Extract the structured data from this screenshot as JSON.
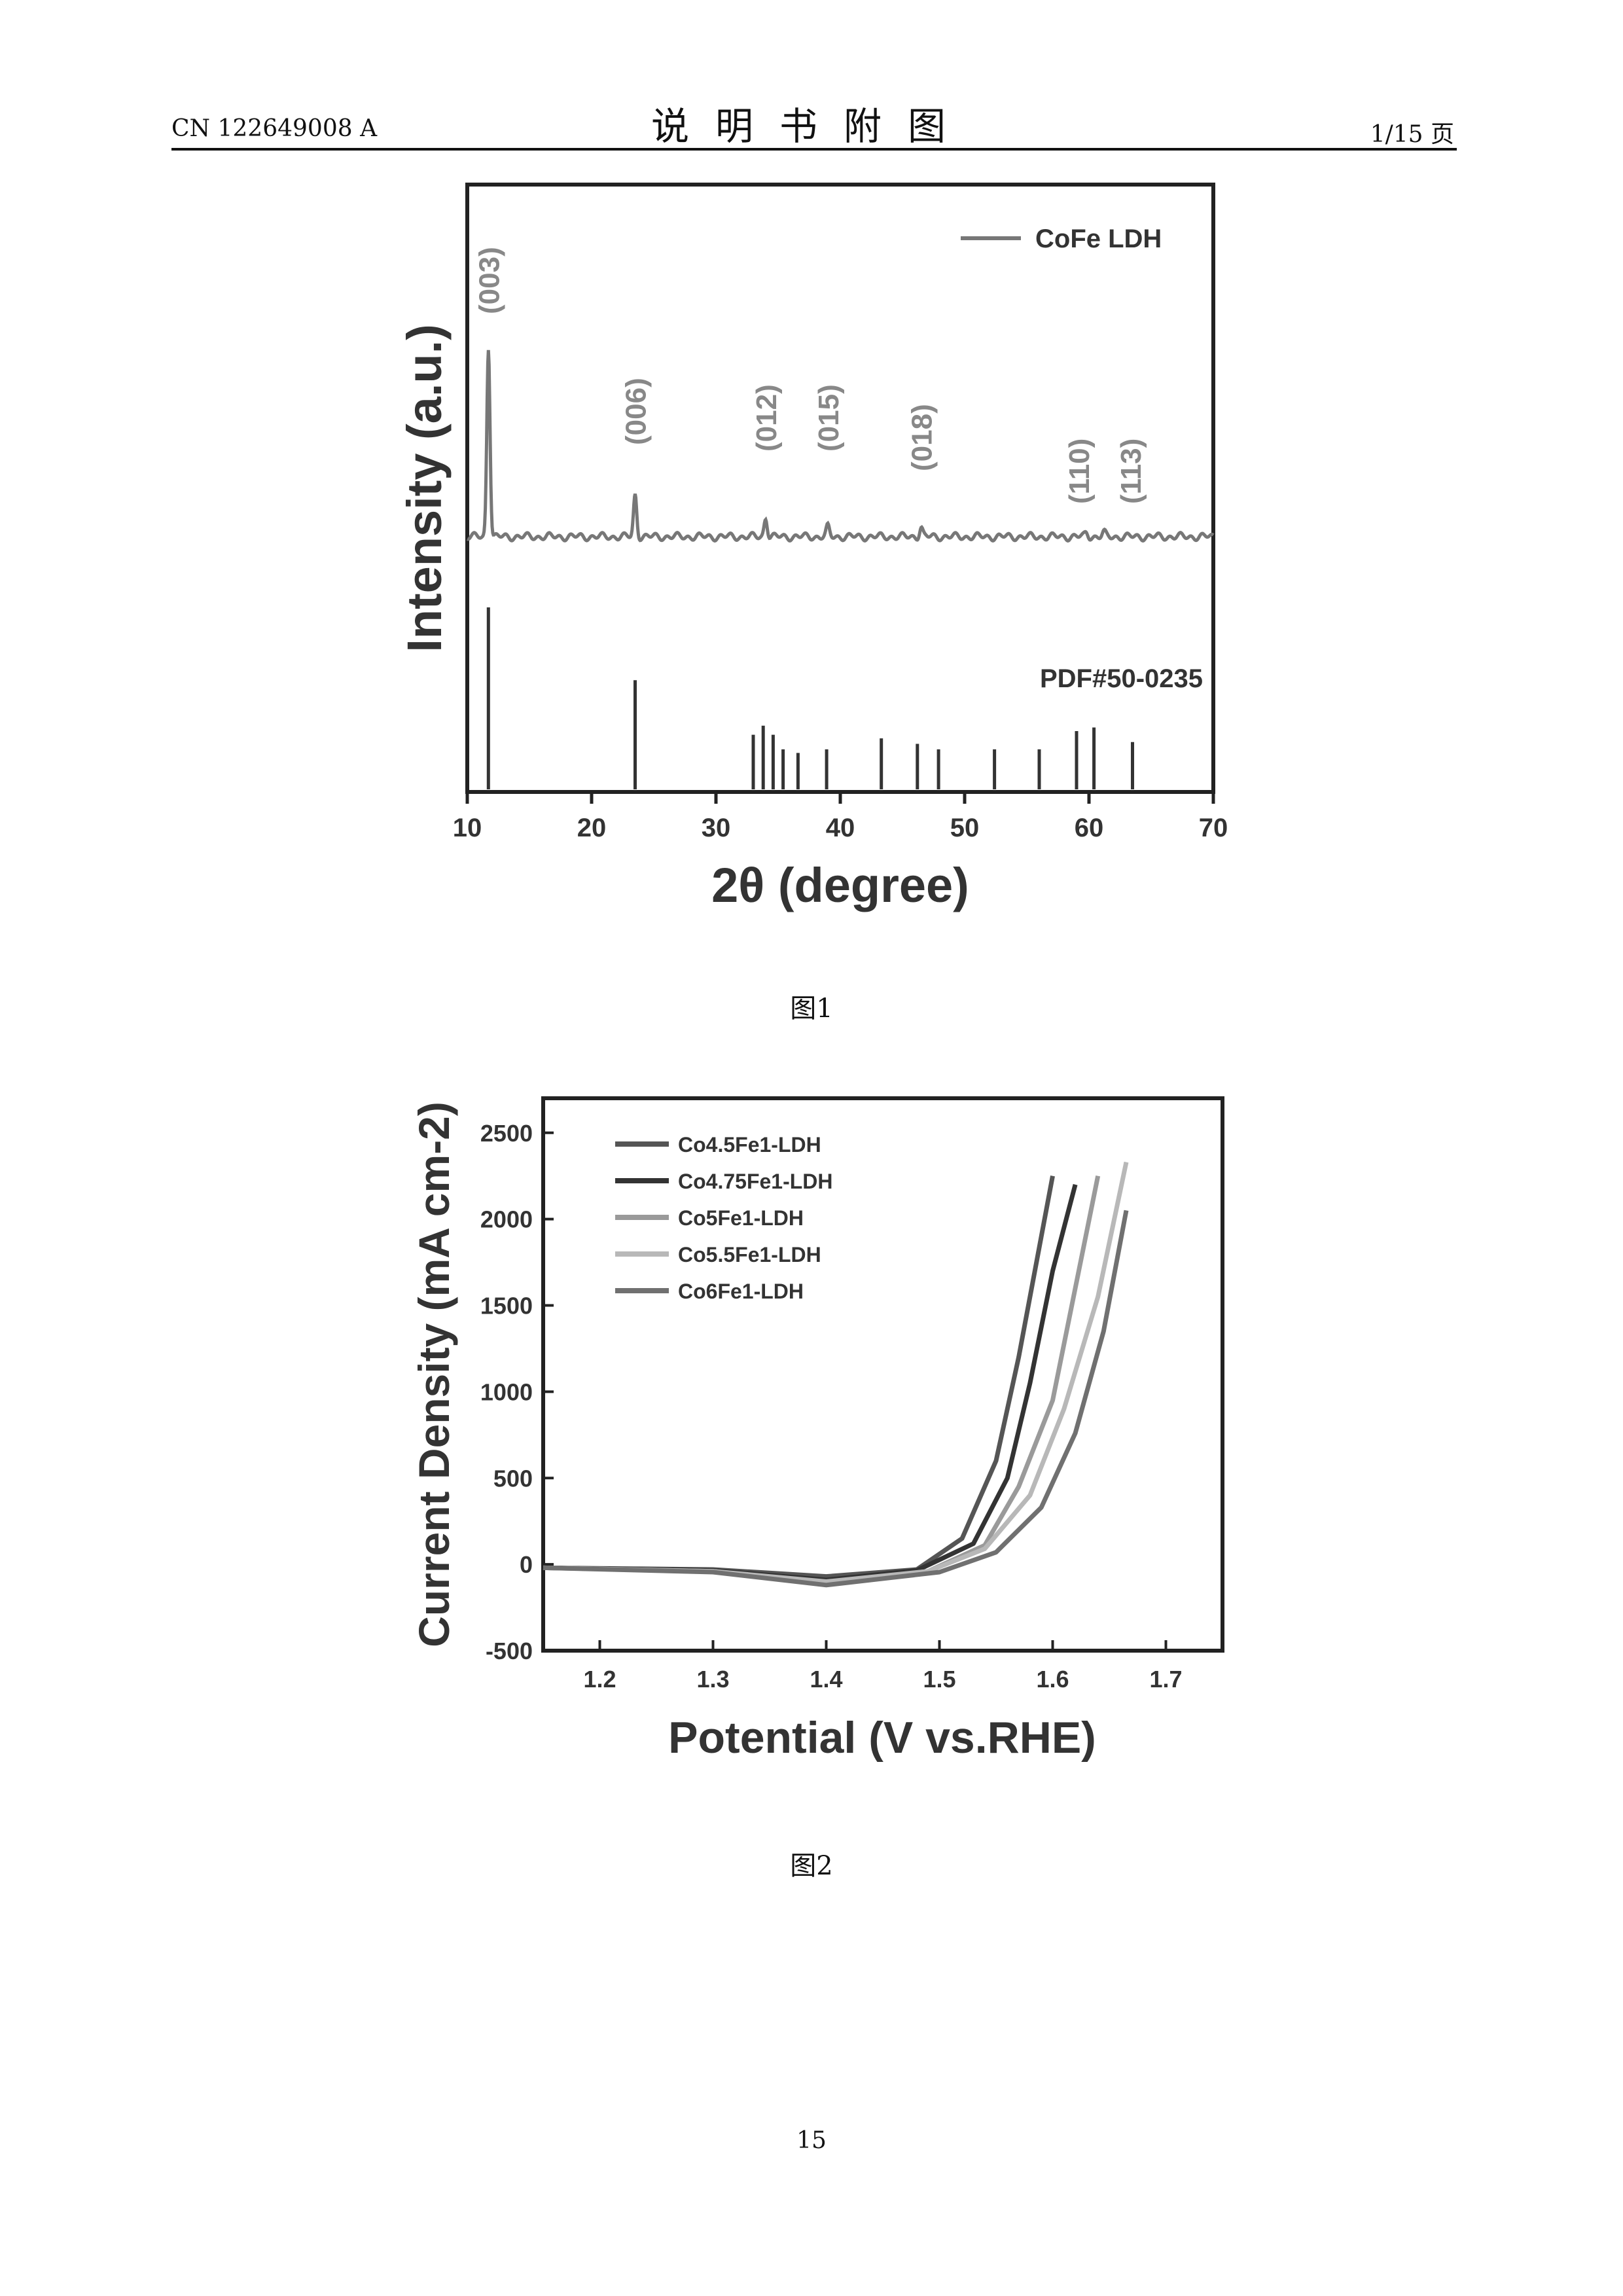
{
  "header": {
    "doc_number": "CN 122649008 A",
    "title": "说明书附图",
    "page_info": "1/15 页"
  },
  "captions": {
    "fig1": "图1",
    "fig2": "图2"
  },
  "footer": {
    "page_number": "15"
  },
  "chart_data": [
    {
      "type": "line",
      "xlabel": "2θ (degree)",
      "ylabel": "Intensity (a.u.)",
      "xlim": [
        10,
        70
      ],
      "xticks": [
        10,
        20,
        30,
        40,
        50,
        60,
        70
      ],
      "grid": false,
      "series": [
        {
          "name": "CoFe LDH",
          "peaks": [
            {
              "x": 11.7,
              "height": 1.0,
              "label": "(003)"
            },
            {
              "x": 23.5,
              "height": 0.22,
              "label": "(006)"
            },
            {
              "x": 34.0,
              "height": 0.1,
              "label": "(012)"
            },
            {
              "x": 39.0,
              "height": 0.05,
              "label": "(015)"
            },
            {
              "x": 46.5,
              "height": 0.05,
              "label": "(018)"
            },
            {
              "x": 59.8,
              "height": 0.02,
              "label": "(110)"
            },
            {
              "x": 61.2,
              "height": 0.02,
              "label": "(113)"
            }
          ]
        }
      ],
      "reference": {
        "name": "PDF#50-0235",
        "sticks": [
          {
            "x": 11.7,
            "height": 1.0
          },
          {
            "x": 23.5,
            "height": 0.6
          },
          {
            "x": 33.0,
            "height": 0.3
          },
          {
            "x": 33.8,
            "height": 0.35
          },
          {
            "x": 34.6,
            "height": 0.3
          },
          {
            "x": 35.4,
            "height": 0.22
          },
          {
            "x": 36.6,
            "height": 0.2
          },
          {
            "x": 38.9,
            "height": 0.22
          },
          {
            "x": 43.3,
            "height": 0.28
          },
          {
            "x": 46.2,
            "height": 0.25
          },
          {
            "x": 47.9,
            "height": 0.22
          },
          {
            "x": 52.4,
            "height": 0.22
          },
          {
            "x": 56.0,
            "height": 0.22
          },
          {
            "x": 59.0,
            "height": 0.32
          },
          {
            "x": 60.4,
            "height": 0.34
          },
          {
            "x": 63.5,
            "height": 0.26
          }
        ]
      }
    },
    {
      "type": "line",
      "xlabel": "Potential (V vs.RHE)",
      "ylabel": "Current Density (mA cm-2)",
      "xlim": [
        1.15,
        1.75
      ],
      "ylim": [
        -500,
        2700
      ],
      "xticks": [
        1.2,
        1.3,
        1.4,
        1.5,
        1.6,
        1.7
      ],
      "yticks": [
        -500,
        0,
        500,
        1000,
        1500,
        2000,
        2500
      ],
      "grid": false,
      "legend_position": "top-left",
      "series": [
        {
          "name": "Co4.5Fe1-LDH",
          "color": "#555555",
          "x": [
            1.15,
            1.3,
            1.4,
            1.48,
            1.52,
            1.55,
            1.57,
            1.59,
            1.6
          ],
          "y": [
            -20,
            -30,
            -70,
            -30,
            150,
            600,
            1200,
            1900,
            2250
          ]
        },
        {
          "name": "Co4.75Fe1-LDH",
          "color": "#333333",
          "x": [
            1.15,
            1.3,
            1.4,
            1.48,
            1.53,
            1.56,
            1.58,
            1.6,
            1.62
          ],
          "y": [
            -20,
            -35,
            -90,
            -35,
            120,
            500,
            1050,
            1700,
            2200
          ]
        },
        {
          "name": "Co5Fe1-LDH",
          "color": "#9a9a9a",
          "x": [
            1.15,
            1.3,
            1.4,
            1.49,
            1.54,
            1.57,
            1.6,
            1.62,
            1.64
          ],
          "y": [
            -20,
            -40,
            -110,
            -40,
            110,
            450,
            950,
            1600,
            2250
          ]
        },
        {
          "name": "Co5.5Fe1-LDH",
          "color": "#b8b8b8",
          "x": [
            1.15,
            1.3,
            1.4,
            1.49,
            1.54,
            1.58,
            1.61,
            1.64,
            1.665
          ],
          "y": [
            -20,
            -40,
            -100,
            -40,
            90,
            400,
            900,
            1550,
            2330
          ]
        },
        {
          "name": "Co6Fe1-LDH",
          "color": "#707070",
          "x": [
            1.15,
            1.3,
            1.4,
            1.5,
            1.55,
            1.59,
            1.62,
            1.645,
            1.665
          ],
          "y": [
            -20,
            -45,
            -120,
            -45,
            70,
            330,
            760,
            1350,
            2050
          ]
        }
      ]
    }
  ]
}
